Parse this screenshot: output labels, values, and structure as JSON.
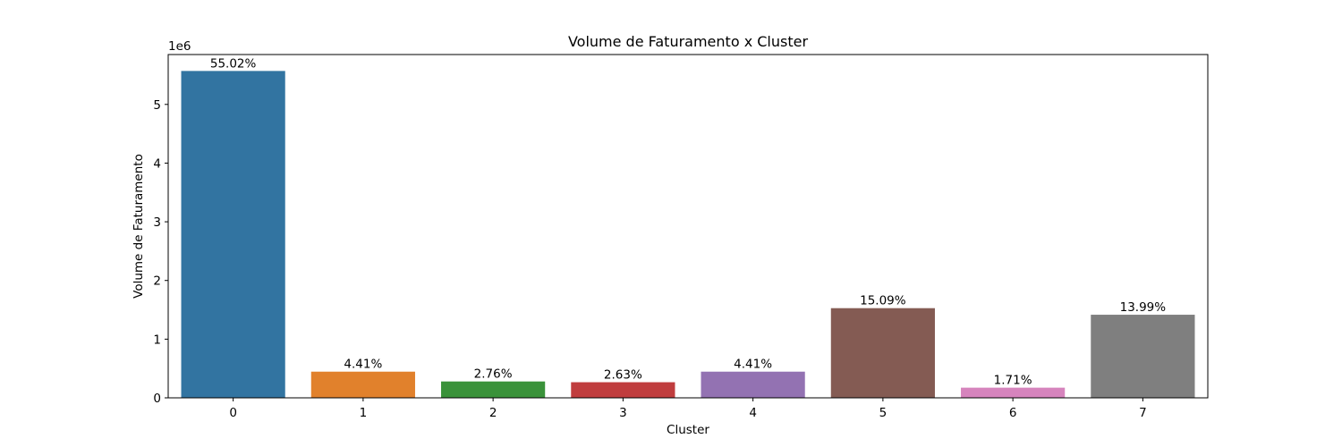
{
  "chart_data": {
    "type": "bar",
    "title": "Volume de Faturamento x Cluster",
    "xlabel": "Cluster",
    "ylabel": "Volume de Faturamento",
    "y_multiplier_label": "1e6",
    "categories": [
      "0",
      "1",
      "2",
      "3",
      "4",
      "5",
      "6",
      "7"
    ],
    "values": [
      5570000,
      446000,
      279000,
      266000,
      446000,
      1528000,
      173000,
      1416000
    ],
    "data_labels": [
      "55.02%",
      "4.41%",
      "2.76%",
      "2.63%",
      "4.41%",
      "15.09%",
      "1.71%",
      "13.99%"
    ],
    "colors": [
      "#3274a1",
      "#e1812c",
      "#3a923a",
      "#c03d3e",
      "#9372b2",
      "#845b53",
      "#d684bd",
      "#7f7f7f"
    ],
    "ylim": [
      0,
      5850000
    ],
    "yticks": [
      0,
      1000000,
      2000000,
      3000000,
      4000000,
      5000000
    ],
    "ytick_labels": [
      "0",
      "1",
      "2",
      "3",
      "4",
      "5"
    ],
    "grid": false,
    "legend": "none"
  }
}
